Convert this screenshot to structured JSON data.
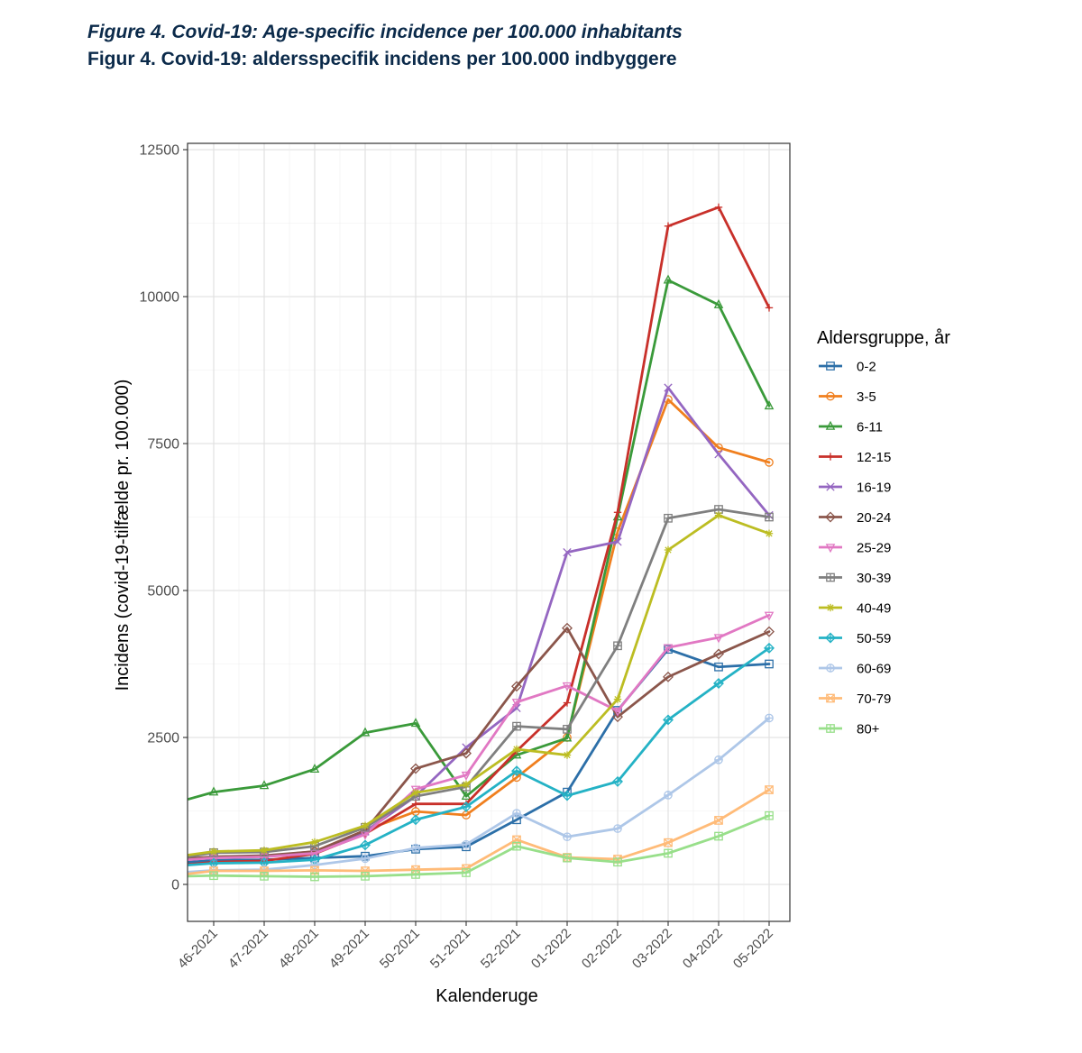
{
  "header": {
    "title_en": "Figure 4. Covid-19: Age-specific incidence per 100.000 inhabitants",
    "title_da": "Figur 4. Covid-19: aldersspecifik incidens per 100.000 indbyggere"
  },
  "chart_data": {
    "type": "line",
    "title": "Figure 4. Covid-19: Age-specific incidence per 100.000 inhabitants",
    "subtitle": "Figur 4. Covid-19: aldersspecifik incidens per 100.000 indbyggere",
    "xlabel": "Kalenderuge",
    "ylabel": "Incidens (covid-19-tilfælde pr. 100.000)",
    "x_start_value": -0.5,
    "categories": [
      "46-2021",
      "47-2021",
      "48-2021",
      "49-2021",
      "50-2021",
      "51-2021",
      "52-2021",
      "01-2022",
      "02-2022",
      "03-2022",
      "04-2022",
      "05-2022"
    ],
    "ylim": [
      -500,
      12500
    ],
    "yticks": [
      0,
      2500,
      5000,
      7500,
      10000,
      12500
    ],
    "grid": true,
    "legend_title": "Aldersgruppe, år",
    "legend_position": "right",
    "series": [
      {
        "name": "0-2",
        "color": "#2c6fa8",
        "marker": "square",
        "start": 380,
        "values": [
          410,
          420,
          450,
          480,
          600,
          640,
          1100,
          1570,
          2960,
          4000,
          3700,
          3750
        ]
      },
      {
        "name": "3-5",
        "color": "#f07f1e",
        "marker": "circle",
        "start": 420,
        "values": [
          470,
          480,
          560,
          920,
          1240,
          1180,
          1820,
          2500,
          6000,
          8250,
          7430,
          7180
        ]
      },
      {
        "name": "6-11",
        "color": "#3a9a3a",
        "marker": "triangle",
        "start": 1450,
        "values": [
          1570,
          1680,
          1960,
          2580,
          2740,
          1500,
          2200,
          2490,
          6250,
          10280,
          9860,
          8140
        ]
      },
      {
        "name": "12-15",
        "color": "#c8302a",
        "marker": "plus",
        "start": 340,
        "values": [
          380,
          400,
          520,
          860,
          1370,
          1370,
          2270,
          3090,
          6330,
          11200,
          11520,
          9810
        ]
      },
      {
        "name": "16-19",
        "color": "#9466c1",
        "marker": "x",
        "start": 420,
        "values": [
          470,
          480,
          550,
          900,
          1500,
          2330,
          3000,
          5650,
          5830,
          8450,
          7320,
          6280
        ]
      },
      {
        "name": "20-24",
        "color": "#8b564b",
        "marker": "diamond",
        "start": 440,
        "values": [
          470,
          490,
          560,
          920,
          1970,
          2230,
          3370,
          4360,
          2850,
          3530,
          3920,
          4300
        ]
      },
      {
        "name": "25-29",
        "color": "#e178c3",
        "marker": "triangle-down",
        "start": 420,
        "values": [
          450,
          470,
          530,
          850,
          1620,
          1860,
          3100,
          3380,
          2950,
          4030,
          4200,
          4580
        ]
      },
      {
        "name": "30-39",
        "color": "#7f7f7f",
        "marker": "boxplus",
        "start": 470,
        "values": [
          540,
          550,
          650,
          970,
          1500,
          1660,
          2690,
          2640,
          4060,
          6230,
          6380,
          6250
        ]
      },
      {
        "name": "40-49",
        "color": "#bcbd22",
        "marker": "asterisk",
        "start": 500,
        "values": [
          560,
          580,
          720,
          1000,
          1560,
          1700,
          2300,
          2200,
          3150,
          5690,
          6280,
          5970
        ]
      },
      {
        "name": "50-59",
        "color": "#24b2c5",
        "marker": "rhombus-plus",
        "start": 330,
        "values": [
          360,
          370,
          420,
          670,
          1100,
          1320,
          1930,
          1510,
          1750,
          2800,
          3420,
          4020
        ]
      },
      {
        "name": "60-69",
        "color": "#aec7e8",
        "marker": "circle-plus",
        "start": 210,
        "values": [
          240,
          250,
          330,
          440,
          620,
          680,
          1210,
          810,
          950,
          1520,
          2120,
          2830
        ]
      },
      {
        "name": "70-79",
        "color": "#ffbb78",
        "marker": "square-x",
        "start": 180,
        "values": [
          230,
          230,
          240,
          230,
          250,
          270,
          760,
          460,
          430,
          710,
          1090,
          1610
        ]
      },
      {
        "name": "80+",
        "color": "#98df8a",
        "marker": "square-cross",
        "start": 140,
        "values": [
          150,
          140,
          130,
          140,
          170,
          200,
          650,
          450,
          380,
          530,
          820,
          1170
        ]
      }
    ]
  }
}
